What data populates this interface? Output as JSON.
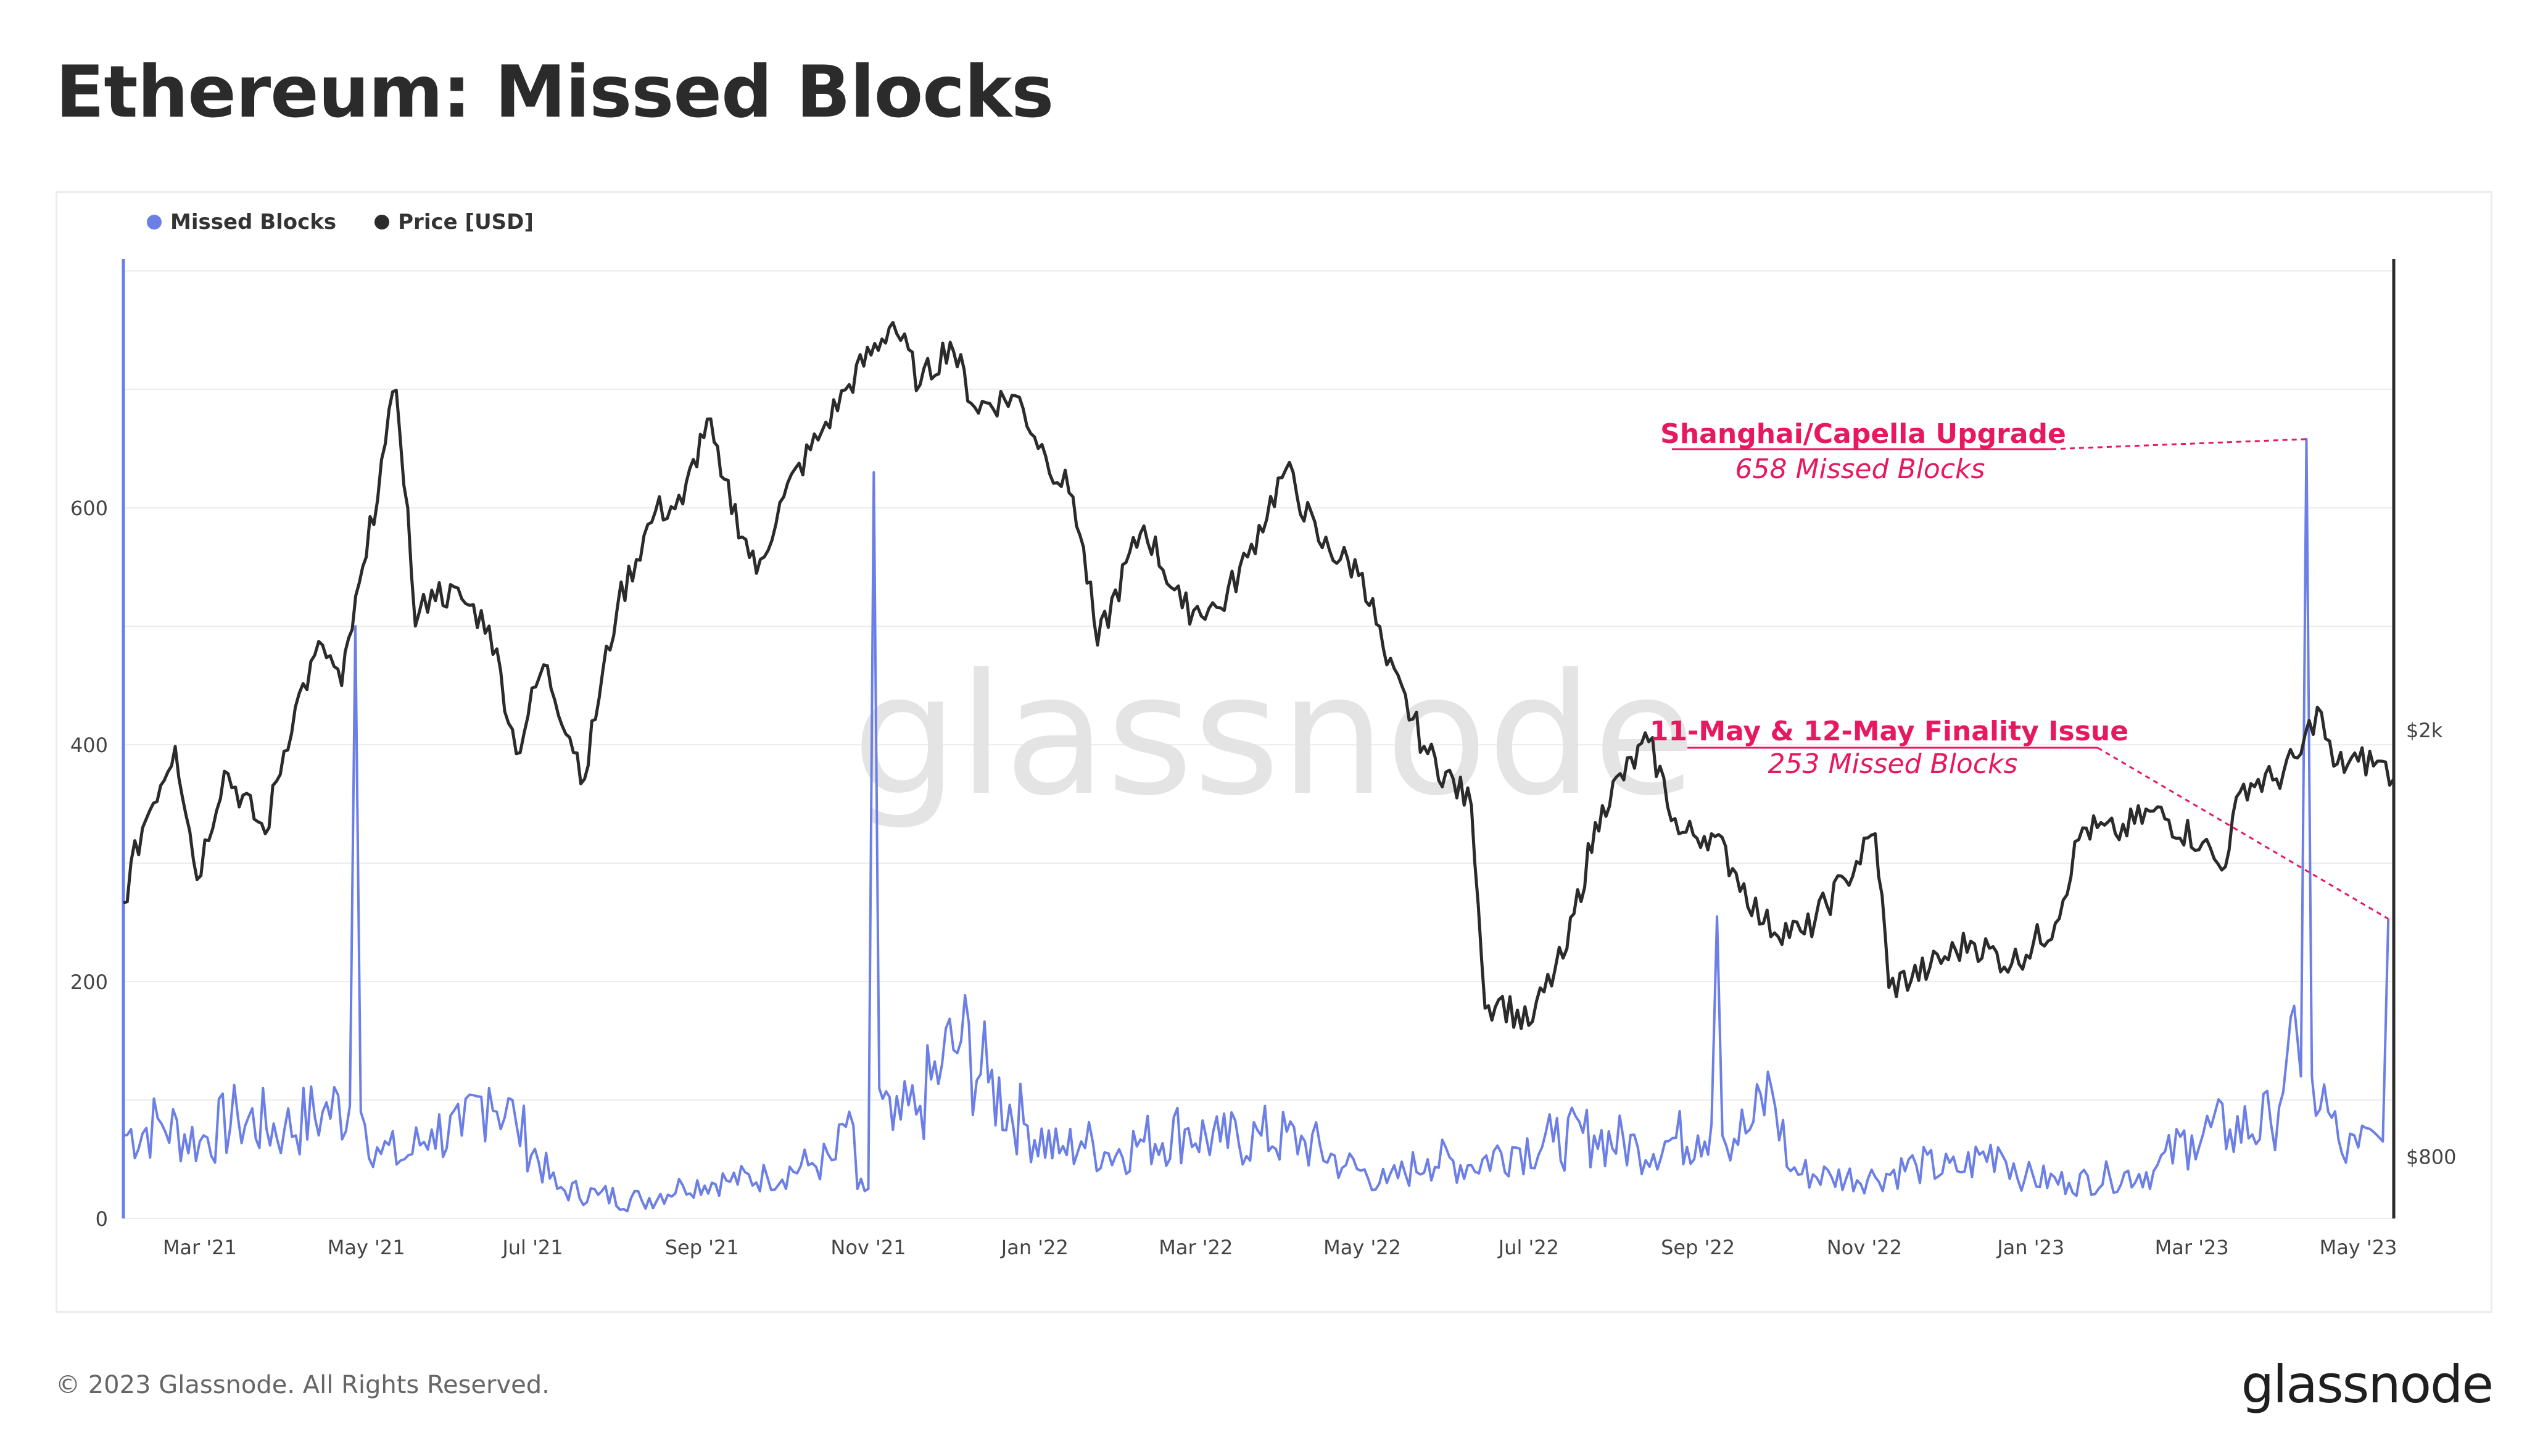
{
  "title": "Ethereum: Missed Blocks",
  "legend": [
    {
      "name": "Missed Blocks",
      "color": "#6b7fe6"
    },
    {
      "name": "Price [USD]",
      "color": "#2b2b2b"
    }
  ],
  "footer": "© 2023 Glassnode. All Rights Reserved.",
  "brand": "glassnode",
  "watermark": "glassnode",
  "colors": {
    "missed_blocks": "#6b7fe6",
    "price": "#2b2b2b",
    "annotation": "#e8185e",
    "grid": "#e6e6e6"
  },
  "chart_data": {
    "type": "line",
    "x_ticks": [
      "Mar '21",
      "May '21",
      "Jul '21",
      "Sep '21",
      "Nov '21",
      "Jan '22",
      "Mar '22",
      "May '22",
      "Jul '22",
      "Sep '22",
      "Nov '22",
      "Jan '23",
      "Mar '23",
      "May '23"
    ],
    "y_left": {
      "ticks": [
        "0",
        "200",
        "400",
        "600"
      ],
      "range": [
        0,
        810
      ]
    },
    "y_right": {
      "ticks": [
        "$800",
        "$2k"
      ],
      "scale": "log",
      "range": [
        700,
        5500
      ]
    },
    "annotations": [
      {
        "title": "Shanghai/Capella Upgrade",
        "subtitle": "658 Missed Blocks",
        "date": "2023-04-12",
        "value": 658
      },
      {
        "title": "11-May & 12-May Finality Issue",
        "subtitle": "253 Missed Blocks",
        "date": "2023-05-12",
        "value": 253
      }
    ],
    "series": [
      {
        "name": "Missed Blocks",
        "axis": "left",
        "points": [
          [
            "2021-02-01",
            70
          ],
          [
            "2021-02-15",
            80
          ],
          [
            "2021-03-01",
            65
          ],
          [
            "2021-03-15",
            85
          ],
          [
            "2021-04-01",
            75
          ],
          [
            "2021-04-15",
            90
          ],
          [
            "2021-04-25",
            95
          ],
          [
            "2021-04-27",
            500
          ],
          [
            "2021-04-29",
            90
          ],
          [
            "2021-05-05",
            60
          ],
          [
            "2021-05-15",
            50
          ],
          [
            "2021-05-25",
            75
          ],
          [
            "2021-06-05",
            70
          ],
          [
            "2021-06-15",
            110
          ],
          [
            "2021-06-25",
            80
          ],
          [
            "2021-07-10",
            25
          ],
          [
            "2021-07-25",
            20
          ],
          [
            "2021-08-10",
            15
          ],
          [
            "2021-08-25",
            28
          ],
          [
            "2021-09-10",
            32
          ],
          [
            "2021-09-25",
            35
          ],
          [
            "2021-10-10",
            45
          ],
          [
            "2021-10-20",
            50
          ],
          [
            "2021-10-25",
            90
          ],
          [
            "2021-10-28",
            25
          ],
          [
            "2021-11-01",
            25
          ],
          [
            "2021-11-03",
            630
          ],
          [
            "2021-11-05",
            110
          ],
          [
            "2021-11-10",
            75
          ],
          [
            "2021-11-20",
            95
          ],
          [
            "2021-11-28",
            130
          ],
          [
            "2021-12-05",
            150
          ],
          [
            "2021-12-15",
            115
          ],
          [
            "2021-12-28",
            80
          ],
          [
            "2022-01-10",
            55
          ],
          [
            "2022-01-18",
            65
          ],
          [
            "2022-01-28",
            55
          ],
          [
            "2022-02-10",
            65
          ],
          [
            "2022-02-25",
            75
          ],
          [
            "2022-03-10",
            65
          ],
          [
            "2022-03-25",
            70
          ],
          [
            "2022-04-10",
            65
          ],
          [
            "2022-04-25",
            45
          ],
          [
            "2022-05-10",
            30
          ],
          [
            "2022-05-25",
            50
          ],
          [
            "2022-06-10",
            45
          ],
          [
            "2022-06-25",
            60
          ],
          [
            "2022-07-10",
            65
          ],
          [
            "2022-07-25",
            70
          ],
          [
            "2022-08-10",
            60
          ],
          [
            "2022-08-20",
            65
          ],
          [
            "2022-09-01",
            70
          ],
          [
            "2022-09-06",
            80
          ],
          [
            "2022-09-08",
            255
          ],
          [
            "2022-09-10",
            70
          ],
          [
            "2022-09-20",
            75
          ],
          [
            "2022-09-28",
            110
          ],
          [
            "2022-10-05",
            40
          ],
          [
            "2022-10-20",
            35
          ],
          [
            "2022-11-05",
            35
          ],
          [
            "2022-11-20",
            45
          ],
          [
            "2022-12-05",
            40
          ],
          [
            "2022-12-20",
            60
          ],
          [
            "2022-12-30",
            35
          ],
          [
            "2023-01-15",
            30
          ],
          [
            "2023-01-30",
            35
          ],
          [
            "2023-02-15",
            40
          ],
          [
            "2023-03-01",
            70
          ],
          [
            "2023-03-15",
            75
          ],
          [
            "2023-03-30",
            80
          ],
          [
            "2023-04-05",
            140
          ],
          [
            "2023-04-10",
            120
          ],
          [
            "2023-04-12",
            658
          ],
          [
            "2023-04-14",
            120
          ],
          [
            "2023-04-20",
            90
          ],
          [
            "2023-04-25",
            55
          ],
          [
            "2023-05-01",
            60
          ],
          [
            "2023-05-08",
            70
          ],
          [
            "2023-05-10",
            65
          ],
          [
            "2023-05-12",
            253
          ]
        ]
      },
      {
        "name": "Price [USD]",
        "axis": "right",
        "points": [
          [
            "2021-02-01",
            1380
          ],
          [
            "2021-02-08",
            1620
          ],
          [
            "2021-02-20",
            1930
          ],
          [
            "2021-02-28",
            1450
          ],
          [
            "2021-03-10",
            1830
          ],
          [
            "2021-03-25",
            1600
          ],
          [
            "2021-04-05",
            2100
          ],
          [
            "2021-04-15",
            2400
          ],
          [
            "2021-04-22",
            2200
          ],
          [
            "2021-05-01",
            2900
          ],
          [
            "2021-05-08",
            3700
          ],
          [
            "2021-05-12",
            4150
          ],
          [
            "2021-05-19",
            2500
          ],
          [
            "2021-05-25",
            2700
          ],
          [
            "2021-06-05",
            2650
          ],
          [
            "2021-06-15",
            2500
          ],
          [
            "2021-06-25",
            1900
          ],
          [
            "2021-07-05",
            2300
          ],
          [
            "2021-07-20",
            1800
          ],
          [
            "2021-08-01",
            2600
          ],
          [
            "2021-08-15",
            3200
          ],
          [
            "2021-08-25",
            3250
          ],
          [
            "2021-09-03",
            3900
          ],
          [
            "2021-09-08",
            3450
          ],
          [
            "2021-09-21",
            2800
          ],
          [
            "2021-10-01",
            3300
          ],
          [
            "2021-10-15",
            3800
          ],
          [
            "2021-10-25",
            4200
          ],
          [
            "2021-11-10",
            4800
          ],
          [
            "2021-11-20",
            4200
          ],
          [
            "2021-12-01",
            4600
          ],
          [
            "2021-12-10",
            4000
          ],
          [
            "2021-12-25",
            4100
          ],
          [
            "2022-01-05",
            3600
          ],
          [
            "2022-01-15",
            3300
          ],
          [
            "2022-01-24",
            2400
          ],
          [
            "2022-02-10",
            3100
          ],
          [
            "2022-02-24",
            2600
          ],
          [
            "2022-03-10",
            2600
          ],
          [
            "2022-03-20",
            2900
          ],
          [
            "2022-04-03",
            3500
          ],
          [
            "2022-04-15",
            3000
          ],
          [
            "2022-05-01",
            2800
          ],
          [
            "2022-05-10",
            2300
          ],
          [
            "2022-05-25",
            1900
          ],
          [
            "2022-06-10",
            1700
          ],
          [
            "2022-06-15",
            1100
          ],
          [
            "2022-06-20",
            1120
          ],
          [
            "2022-07-01",
            1060
          ],
          [
            "2022-07-15",
            1250
          ],
          [
            "2022-07-28",
            1700
          ],
          [
            "2022-08-14",
            1950
          ],
          [
            "2022-08-25",
            1600
          ],
          [
            "2022-09-06",
            1600
          ],
          [
            "2022-09-15",
            1470
          ],
          [
            "2022-09-25",
            1320
          ],
          [
            "2022-10-10",
            1290
          ],
          [
            "2022-10-25",
            1450
          ],
          [
            "2022-11-05",
            1600
          ],
          [
            "2022-11-10",
            1150
          ],
          [
            "2022-11-25",
            1200
          ],
          [
            "2022-12-10",
            1270
          ],
          [
            "2022-12-25",
            1210
          ],
          [
            "2023-01-10",
            1320
          ],
          [
            "2023-01-20",
            1620
          ],
          [
            "2023-02-01",
            1600
          ],
          [
            "2023-02-15",
            1680
          ],
          [
            "2023-03-05",
            1570
          ],
          [
            "2023-03-12",
            1480
          ],
          [
            "2023-03-20",
            1780
          ],
          [
            "2023-04-01",
            1800
          ],
          [
            "2023-04-10",
            1900
          ],
          [
            "2023-04-16",
            2100
          ],
          [
            "2023-04-22",
            1850
          ],
          [
            "2023-05-01",
            1870
          ],
          [
            "2023-05-08",
            1870
          ],
          [
            "2023-05-14",
            1800
          ]
        ]
      }
    ]
  }
}
